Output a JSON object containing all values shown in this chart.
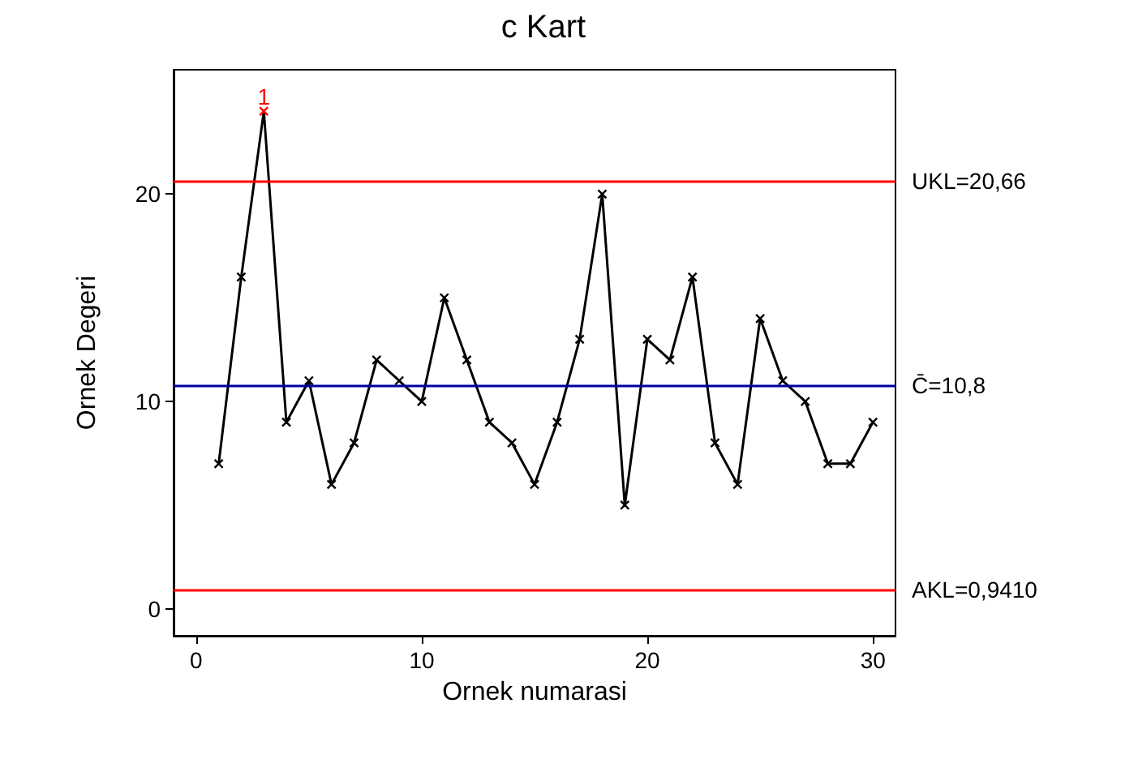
{
  "chart_data": {
    "type": "line",
    "title": "c Kart",
    "xlabel": "Ornek numarasi",
    "ylabel": "Ornek Degeri",
    "x": [
      1,
      2,
      3,
      4,
      5,
      6,
      7,
      8,
      9,
      10,
      11,
      12,
      13,
      14,
      15,
      16,
      17,
      18,
      19,
      20,
      21,
      22,
      23,
      24,
      25,
      26,
      27,
      28,
      29,
      30
    ],
    "series": [
      {
        "color": "#000000",
        "colors": [
          "#000000",
          "#000000",
          "#ff0000",
          "#000000",
          "#000000",
          "#000000",
          "#000000",
          "#000000",
          "#000000",
          "#000000",
          "#000000",
          "#000000",
          "#000000",
          "#000000",
          "#000000",
          "#000000",
          "#000000",
          "#000000",
          "#000000",
          "#000000",
          "#000000",
          "#000000",
          "#000000",
          "#000000",
          "#000000",
          "#000000",
          "#000000",
          "#000000",
          "#000000",
          "#000000"
        ],
        "values": [
          7,
          16,
          24,
          9,
          11,
          6,
          8,
          12,
          11,
          10,
          15,
          12,
          9,
          8,
          6,
          9,
          13,
          20,
          5,
          13,
          12,
          16,
          8,
          6,
          14,
          11,
          10,
          7,
          7,
          9
        ]
      }
    ],
    "xlim": [
      -1,
      31
    ],
    "xticks": [
      0,
      10,
      20,
      30
    ],
    "ylim": [
      -1.3,
      26
    ],
    "yticks": [
      0,
      10,
      20
    ],
    "ref_lines": [
      {
        "axis": "y",
        "value": 20.66,
        "label": "UKL=20,66",
        "color": "#ff0000"
      },
      {
        "axis": "y",
        "value": 10.8,
        "label": "C̄=10,8",
        "color": "#0000a0"
      },
      {
        "axis": "y",
        "value": 0.941,
        "label": "AKL=0,9410",
        "color": "#ff0000"
      }
    ],
    "annotations": [
      {
        "text": "1",
        "x": 3,
        "y": 24
      }
    ],
    "marker": "cross",
    "line_style": "solid",
    "grid": false
  }
}
